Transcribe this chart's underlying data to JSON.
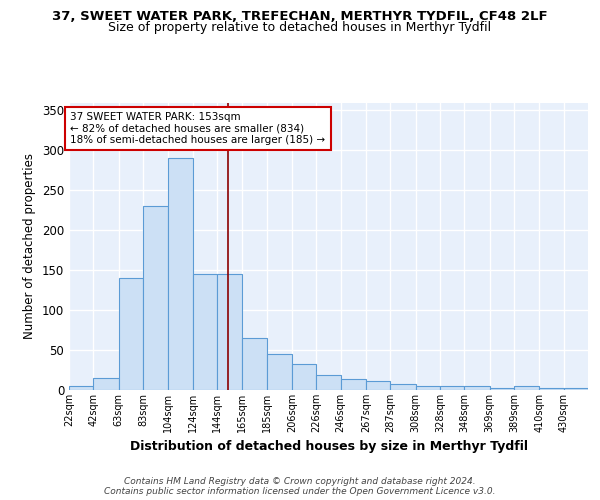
{
  "title_line1": "37, SWEET WATER PARK, TREFECHAN, MERTHYR TYDFIL, CF48 2LF",
  "title_line2": "Size of property relative to detached houses in Merthyr Tydfil",
  "xlabel": "Distribution of detached houses by size in Merthyr Tydfil",
  "ylabel": "Number of detached properties",
  "bin_labels": [
    "22sqm",
    "42sqm",
    "63sqm",
    "83sqm",
    "104sqm",
    "124sqm",
    "144sqm",
    "165sqm",
    "185sqm",
    "206sqm",
    "226sqm",
    "246sqm",
    "267sqm",
    "287sqm",
    "308sqm",
    "328sqm",
    "348sqm",
    "369sqm",
    "389sqm",
    "410sqm",
    "430sqm"
  ],
  "bin_edges": [
    22,
    42,
    63,
    83,
    104,
    124,
    144,
    165,
    185,
    206,
    226,
    246,
    267,
    287,
    308,
    328,
    348,
    369,
    389,
    410,
    430
  ],
  "bar_heights": [
    5,
    15,
    140,
    230,
    290,
    145,
    145,
    65,
    45,
    32,
    19,
    14,
    11,
    8,
    5,
    5,
    5,
    3,
    5,
    3,
    2
  ],
  "bar_color": "#cce0f5",
  "bar_edge_color": "#5b9bd5",
  "vline_x": 153,
  "vline_color": "#8b0000",
  "annotation_text": "37 SWEET WATER PARK: 153sqm\n← 82% of detached houses are smaller (834)\n18% of semi-detached houses are larger (185) →",
  "annotation_box_color": "white",
  "annotation_box_edge": "#cc0000",
  "ylim": [
    0,
    360
  ],
  "yticks": [
    0,
    50,
    100,
    150,
    200,
    250,
    300,
    350
  ],
  "background_color": "#e8f0fb",
  "footer_text": "Contains HM Land Registry data © Crown copyright and database right 2024.\nContains public sector information licensed under the Open Government Licence v3.0.",
  "grid_color": "white",
  "title_fontsize": 9.5,
  "subtitle_fontsize": 9
}
